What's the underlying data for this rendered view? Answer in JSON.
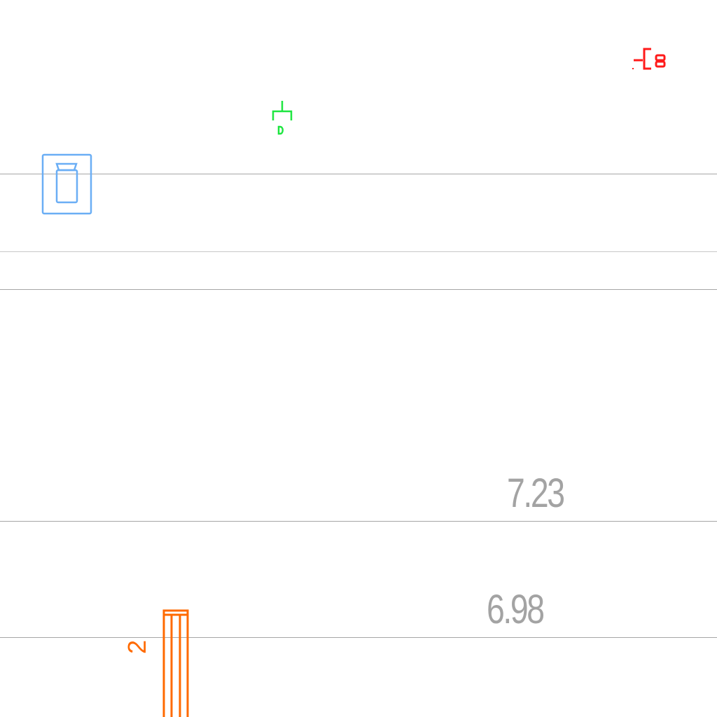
{
  "values": {
    "upper": "7.23",
    "lower": "6.98"
  },
  "marker": {
    "label": "2",
    "color": "#ff6a00"
  },
  "symbols": {
    "red": {
      "name": "valve-cluster-icon",
      "color": "#ff1a1a"
    },
    "green": {
      "name": "tee-fitting-icon",
      "color": "#1ee640"
    },
    "blue": {
      "name": "weight-icon",
      "color": "#6aaef5"
    }
  }
}
